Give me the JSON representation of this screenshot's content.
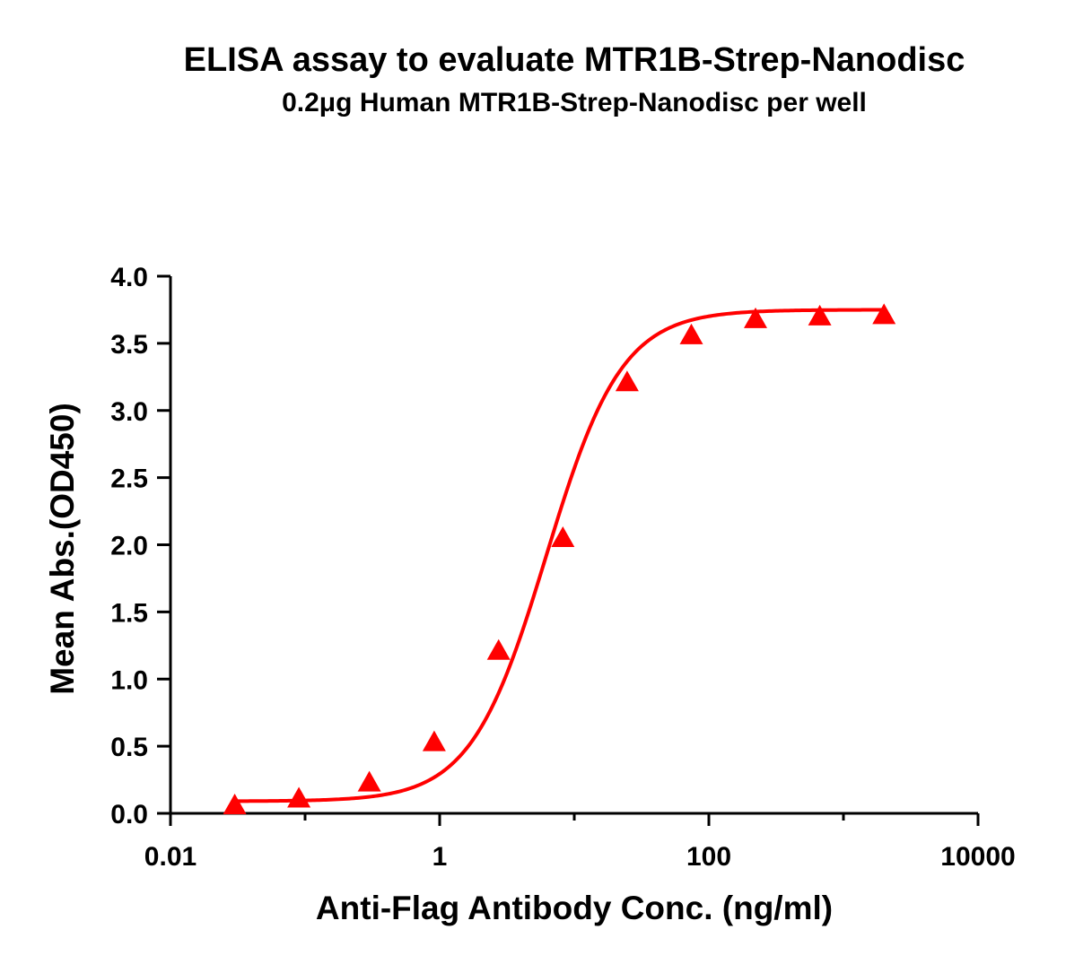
{
  "chart_data": {
    "type": "scatter",
    "title": "ELISA assay to evaluate MTR1B-Strep-Nanodisc",
    "subtitle": "0.2μg Human MTR1B-Strep-Nanodisc per well",
    "xlabel": "Anti-Flag Antibody Conc. (ng/ml)",
    "ylabel": "Mean Abs.(OD450)",
    "xscale": "log",
    "xlim": [
      0.01,
      10000
    ],
    "ylim": [
      0,
      4.0
    ],
    "x_ticks": [
      0.01,
      1,
      100,
      10000
    ],
    "x_tick_labels": [
      "0.01",
      "1",
      "100",
      "10000"
    ],
    "y_ticks": [
      0,
      0.5,
      1.0,
      1.5,
      2.0,
      2.5,
      3.0,
      3.5,
      4.0
    ],
    "y_tick_labels": [
      "0.0",
      "0.5",
      "1.0",
      "1.5",
      "2.0",
      "2.5",
      "3.0",
      "3.5",
      "4.0"
    ],
    "grid": false,
    "marker": "triangle",
    "color": "#ff0000",
    "series": [
      {
        "x": [
          0.03,
          0.09,
          0.3,
          0.91,
          2.74,
          8.23,
          24.7,
          74.1,
          222,
          667,
          2000
        ],
        "y": [
          0.06,
          0.11,
          0.23,
          0.53,
          1.21,
          2.05,
          3.21,
          3.56,
          3.68,
          3.7,
          3.71
        ],
        "fit": {
          "model": "4PL",
          "bottom": 0.09,
          "top": 3.75,
          "ec50": 6.2,
          "hill": 1.55
        }
      }
    ]
  }
}
